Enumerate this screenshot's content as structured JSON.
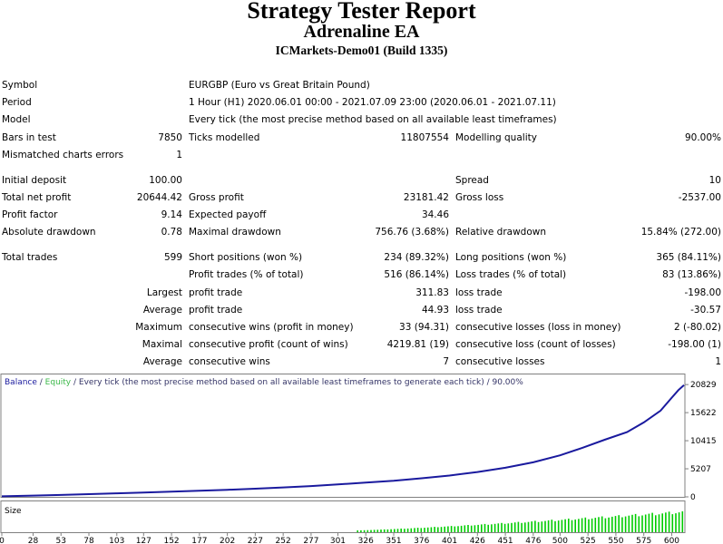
{
  "header": {
    "title": "Strategy Tester Report",
    "ea_name": "Adrenaline EA",
    "server": "ICMarkets-Demo01 (Build 1335)"
  },
  "rows": {
    "symbol": {
      "label": "Symbol",
      "value": "EURGBP (Euro vs Great Britain Pound)"
    },
    "period": {
      "label": "Period",
      "value": "1 Hour (H1) 2020.06.01 00:00 - 2021.07.09 23:00 (2020.06.01 - 2021.07.11)"
    },
    "model": {
      "label": "Model",
      "value": "Every tick (the most precise method based on all available least timeframes)"
    },
    "bars": {
      "label": "Bars in test",
      "value": "7850",
      "label2": "Ticks modelled",
      "value2": "11807554",
      "label3": "Modelling quality",
      "value3": "90.00%"
    },
    "mismatch": {
      "label": "Mismatched charts errors",
      "value": "1"
    },
    "deposit": {
      "label": "Initial deposit",
      "value": "100.00",
      "label3": "Spread",
      "value3": "10"
    },
    "netprofit": {
      "label": "Total net profit",
      "value": "20644.42",
      "label2": "Gross profit",
      "value2": "23181.42",
      "label3": "Gross loss",
      "value3": "-2537.00"
    },
    "pfactor": {
      "label": "Profit factor",
      "value": "9.14",
      "label2": "Expected payoff",
      "value2": "34.46"
    },
    "absdd": {
      "label": "Absolute drawdown",
      "value": "0.78",
      "label2": "Maximal drawdown",
      "value2": "756.76 (3.68%)",
      "label3": "Relative drawdown",
      "value3": "15.84% (272.00)"
    },
    "trades": {
      "label": "Total trades",
      "value": "599",
      "label2": "Short positions (won %)",
      "value2": "234 (89.32%)",
      "label3": "Long positions (won %)",
      "value3": "365 (84.11%)"
    },
    "ptrades": {
      "label2": "Profit trades (% of total)",
      "value2": "516 (86.14%)",
      "label3": "Loss trades (% of total)",
      "value3": "83 (13.86%)"
    },
    "largest": {
      "label": "Largest",
      "label2": "profit trade",
      "value2": "311.83",
      "label3": "loss trade",
      "value3": "-198.00"
    },
    "average": {
      "label": "Average",
      "label2": "profit trade",
      "value2": "44.93",
      "label3": "loss trade",
      "value3": "-30.57"
    },
    "maximum": {
      "label": "Maximum",
      "label2": "consecutive wins (profit in money)",
      "value2": "33 (94.31)",
      "label3": "consecutive losses (loss in money)",
      "value3": "2 (-80.02)"
    },
    "maximal": {
      "label": "Maximal",
      "label2": "consecutive profit (count of wins)",
      "value2": "4219.81 (19)",
      "label3": "consecutive loss (count of losses)",
      "value3": "-198.00 (1)"
    },
    "avgcons": {
      "label": "Average",
      "label2": "consecutive wins",
      "value2": "7",
      "label3": "consecutive losses",
      "value3": "1"
    }
  },
  "chart_data": {
    "type": "line",
    "legend": {
      "balance": "Balance",
      "sep": " / ",
      "equity": "Equity",
      "rest": " / Every tick (the most precise method based on all available least timeframes to generate each tick) / 90.00%"
    },
    "size_label": "Size",
    "y_ticks": [
      "20829",
      "15622",
      "10415",
      "5207",
      "0"
    ],
    "y_values": [
      20829,
      15622,
      10415,
      5207,
      0
    ],
    "ylim": [
      0,
      22200
    ],
    "x_ticks": [
      "0",
      "28",
      "53",
      "78",
      "103",
      "127",
      "152",
      "177",
      "202",
      "227",
      "252",
      "277",
      "301",
      "326",
      "351",
      "376",
      "401",
      "426",
      "451",
      "476",
      "500",
      "525",
      "550",
      "575",
      "600"
    ],
    "xlim": [
      0,
      611
    ],
    "series": [
      {
        "name": "Balance",
        "x": [
          0,
          28,
          53,
          78,
          103,
          127,
          152,
          177,
          202,
          227,
          252,
          277,
          301,
          326,
          351,
          376,
          401,
          426,
          451,
          476,
          500,
          520,
          540,
          560,
          575,
          590,
          600,
          606,
          611
        ],
        "values": [
          100,
          230,
          360,
          500,
          650,
          800,
          960,
          1130,
          1320,
          1520,
          1750,
          2000,
          2300,
          2650,
          3000,
          3450,
          3950,
          4600,
          5400,
          6400,
          7700,
          9100,
          10600,
          12000,
          13800,
          16000,
          18400,
          19800,
          20744
        ]
      }
    ],
    "colors": {
      "balance": "#1a1a9e",
      "equity": "#3cb94a",
      "size": "#00cc00",
      "legend_rest": "#333366"
    }
  }
}
